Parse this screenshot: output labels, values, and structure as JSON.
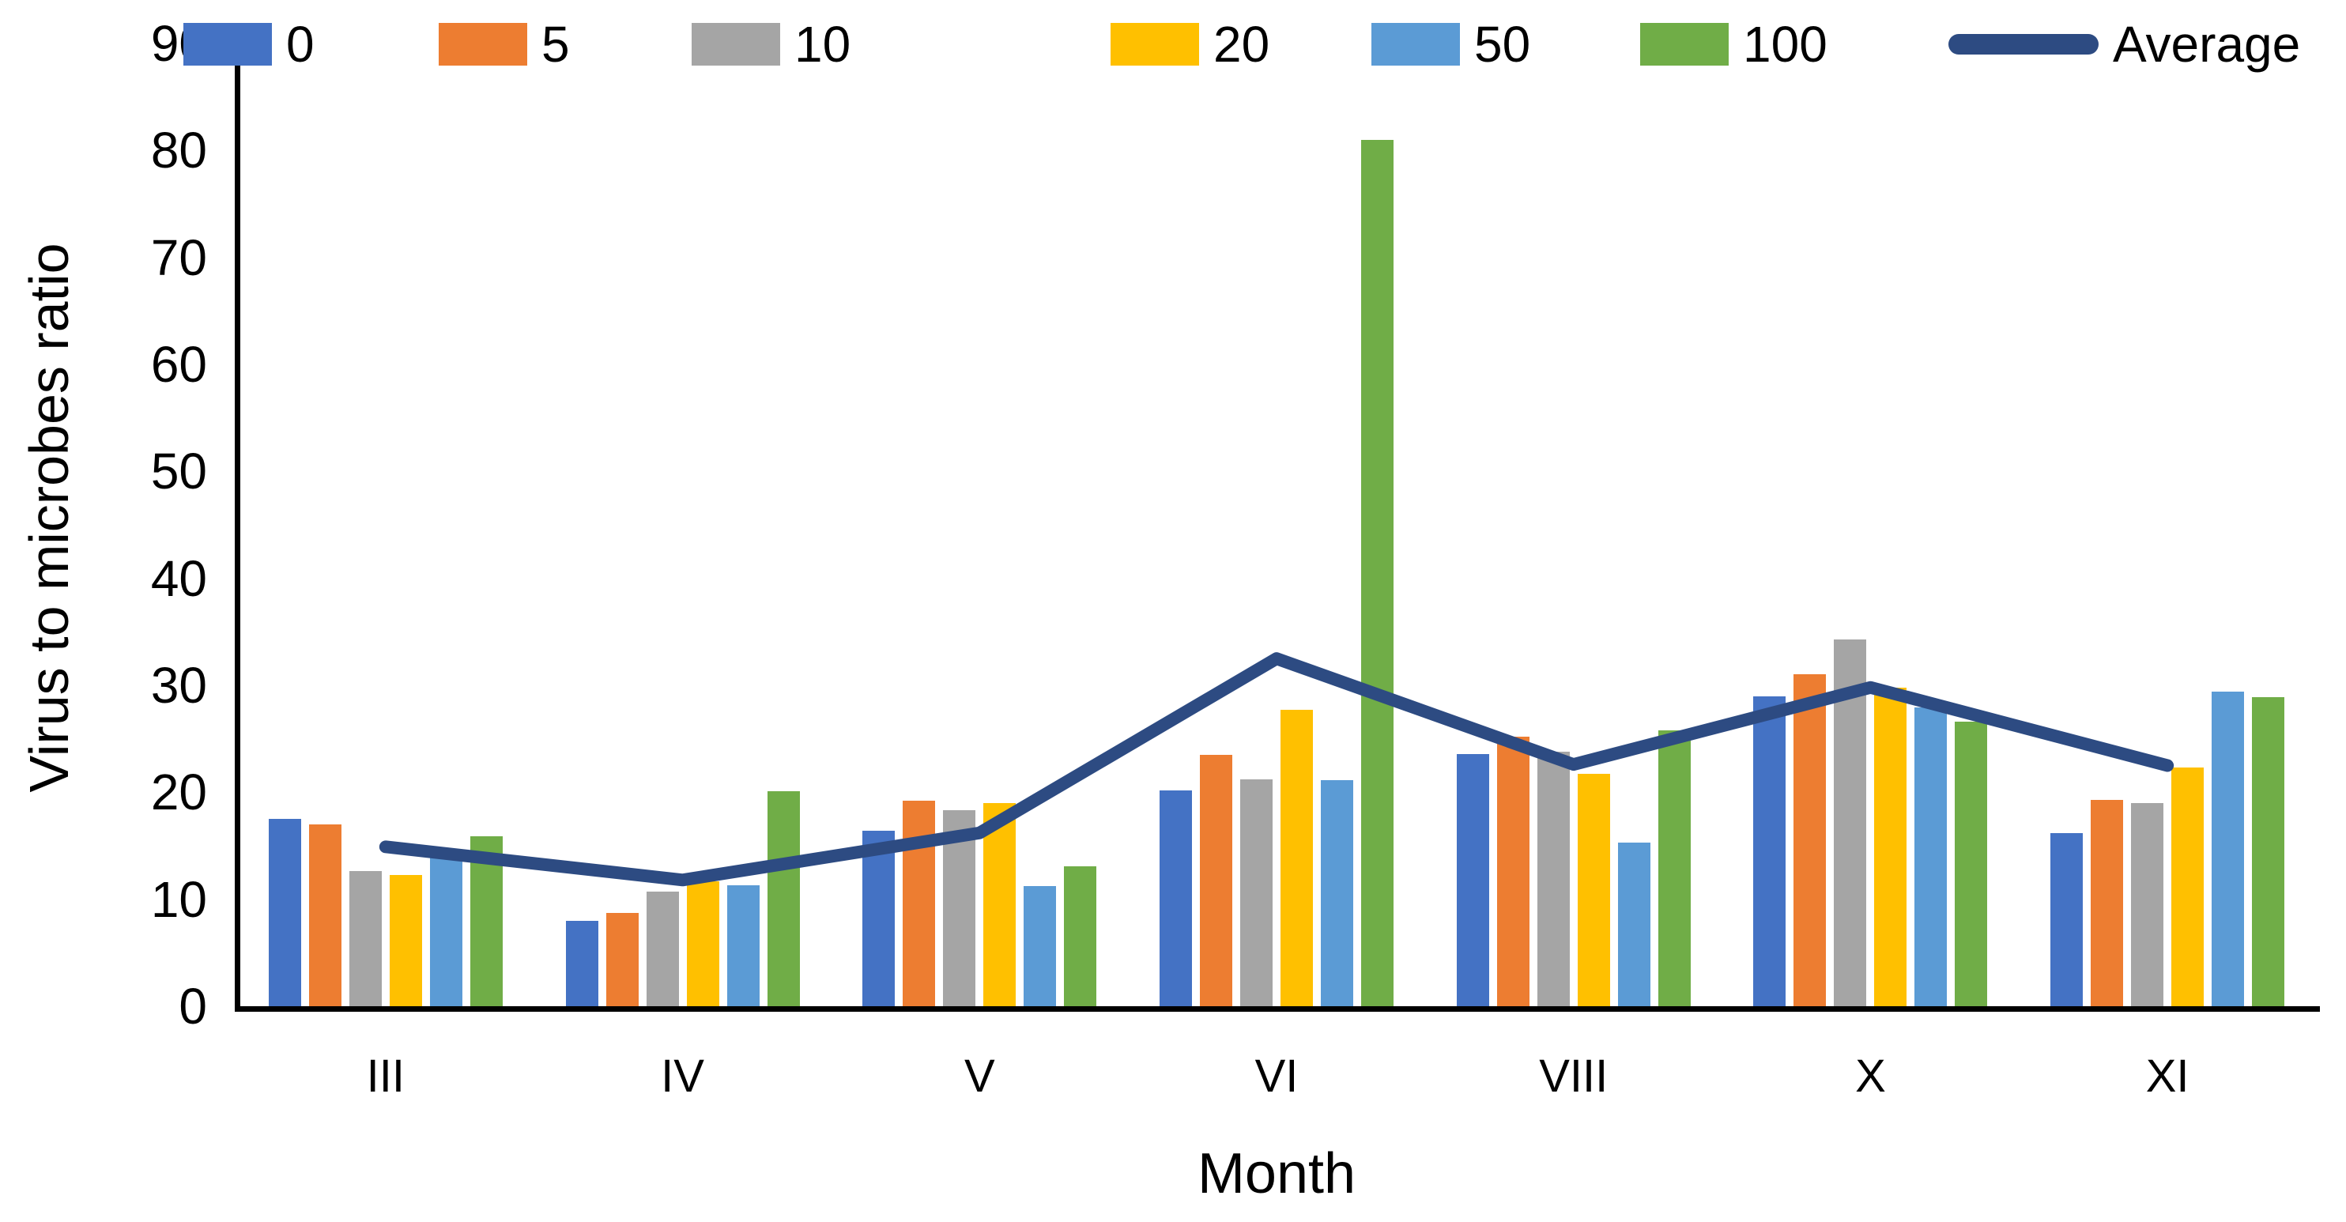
{
  "chart_data": {
    "type": "bar",
    "title": "",
    "xlabel": "Month",
    "ylabel": "Virus to microbes ratio",
    "ylim": [
      0,
      90
    ],
    "yticks": [
      0,
      10,
      20,
      30,
      40,
      50,
      60,
      70,
      80,
      90
    ],
    "grid": false,
    "legend_position": "top",
    "categories": [
      "III",
      "IV",
      "V",
      "VI",
      "VIII",
      "X",
      "XI"
    ],
    "series": [
      {
        "name": "0",
        "color": "#4472C4",
        "values": [
          17.5,
          8.0,
          16.4,
          20.2,
          23.6,
          29.0,
          16.2
        ]
      },
      {
        "name": "5",
        "color": "#ED7D31",
        "values": [
          17.0,
          8.7,
          19.2,
          23.5,
          25.2,
          31.0,
          19.3
        ]
      },
      {
        "name": "10",
        "color": "#A5A5A5",
        "values": [
          12.6,
          10.7,
          18.3,
          21.2,
          23.8,
          34.3,
          19.0
        ]
      },
      {
        "name": "20",
        "color": "#FFC000",
        "values": [
          12.3,
          11.7,
          19.0,
          27.7,
          21.7,
          29.8,
          22.3
        ]
      },
      {
        "name": "50",
        "color": "#5B9BD5",
        "values": [
          14.0,
          11.3,
          11.2,
          21.1,
          15.3,
          27.9,
          29.4
        ]
      },
      {
        "name": "100",
        "color": "#70AD47",
        "values": [
          15.9,
          20.1,
          13.1,
          81.0,
          25.8,
          26.6,
          28.9
        ]
      }
    ],
    "line_series": {
      "name": "Average",
      "color": "#2D4B82",
      "values": [
        14.9,
        11.8,
        16.2,
        32.5,
        22.6,
        29.8,
        22.5
      ]
    }
  },
  "layout_text": {
    "legend_labels": [
      "0",
      "5",
      "10",
      "20",
      "50",
      "100",
      "Average"
    ]
  }
}
